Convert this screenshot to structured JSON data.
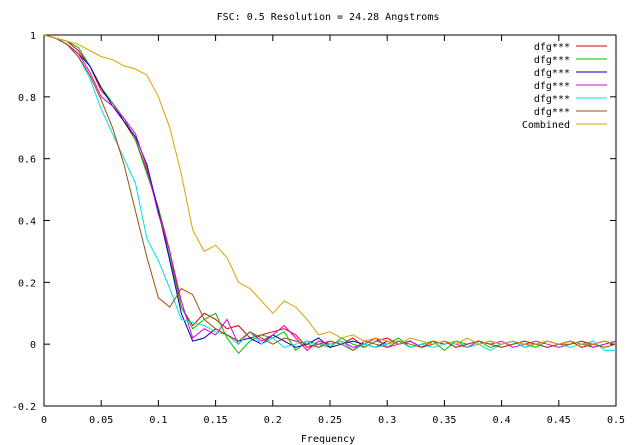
{
  "chart_data": {
    "type": "line",
    "title": "FSC: 0.5 Resolution = 24.28 Angstroms",
    "xlabel": "Frequency",
    "ylabel": "",
    "xlim": [
      0,
      0.5
    ],
    "ylim": [
      -0.2,
      1
    ],
    "xticks": [
      "0",
      "0.05",
      "0.1",
      "0.15",
      "0.2",
      "0.25",
      "0.3",
      "0.35",
      "0.4",
      "0.45",
      "0.5"
    ],
    "yticks": [
      "-0.2",
      "0",
      "0.2",
      "0.4",
      "0.6",
      "0.8",
      "1"
    ],
    "grid": false,
    "legend_position": "top-right",
    "x": [
      0,
      0.01,
      0.02,
      0.03,
      0.04,
      0.05,
      0.06,
      0.07,
      0.08,
      0.09,
      0.1,
      0.11,
      0.12,
      0.13,
      0.14,
      0.15,
      0.16,
      0.17,
      0.18,
      0.19,
      0.2,
      0.21,
      0.22,
      0.23,
      0.24,
      0.25,
      0.26,
      0.27,
      0.28,
      0.29,
      0.3,
      0.31,
      0.32,
      0.33,
      0.34,
      0.35,
      0.36,
      0.37,
      0.38,
      0.39,
      0.4,
      0.41,
      0.42,
      0.43,
      0.44,
      0.45,
      0.46,
      0.47,
      0.48,
      0.49,
      0.5
    ],
    "series": [
      {
        "name": "dfg***",
        "color": "#e00000",
        "values": [
          1,
          0.99,
          0.98,
          0.95,
          0.9,
          0.82,
          0.78,
          0.72,
          0.66,
          0.56,
          0.44,
          0.3,
          0.12,
          0.06,
          0.1,
          0.08,
          0.05,
          0.06,
          0.02,
          0.03,
          0.04,
          0.05,
          0.03,
          -0.01,
          0.0,
          0.01,
          0.0,
          0.02,
          -0.01,
          0.01,
          0.02,
          0.0,
          0.01,
          -0.01,
          0.01,
          0.0,
          0.01,
          -0.01,
          0.0,
          0.01,
          0.0,
          0.01,
          -0.01,
          0.0,
          0.01,
          0.0,
          0.01,
          -0.01,
          0.0,
          0.01,
          0.0
        ]
      },
      {
        "name": "dfg***",
        "color": "#00c000",
        "values": [
          1,
          0.99,
          0.98,
          0.96,
          0.9,
          0.83,
          0.78,
          0.73,
          0.66,
          0.55,
          0.44,
          0.28,
          0.12,
          0.05,
          0.08,
          0.1,
          0.02,
          -0.03,
          0.01,
          0.03,
          0.02,
          0.04,
          -0.02,
          0.01,
          0.0,
          -0.01,
          0.02,
          0.0,
          -0.01,
          0.01,
          0.0,
          0.02,
          -0.01,
          0.0,
          0.01,
          -0.02,
          0.01,
          0.0,
          0.01,
          -0.01,
          0.0,
          0.01,
          0.0,
          -0.01,
          0.01,
          0.0,
          0.01,
          0.0,
          -0.01,
          0.0,
          0.01
        ]
      },
      {
        "name": "dfg***",
        "color": "#0000c0",
        "values": [
          1,
          0.99,
          0.97,
          0.94,
          0.9,
          0.83,
          0.77,
          0.72,
          0.67,
          0.58,
          0.43,
          0.27,
          0.1,
          0.01,
          0.02,
          0.05,
          0.03,
          0.01,
          0.02,
          0.0,
          0.03,
          0.01,
          -0.01,
          0.0,
          0.02,
          -0.01,
          0.0,
          0.01,
          0.0,
          -0.01,
          0.01,
          0.0,
          0.01,
          -0.01,
          0.0,
          0.01,
          -0.01,
          0.0,
          0.01,
          0.0,
          -0.01,
          0.0,
          0.01,
          0.0,
          -0.01,
          0.0,
          0.01,
          0.0,
          0.0,
          0.01,
          0.0
        ]
      },
      {
        "name": "dfg***",
        "color": "#e000e0",
        "values": [
          1,
          0.99,
          0.97,
          0.94,
          0.88,
          0.8,
          0.77,
          0.73,
          0.68,
          0.57,
          0.42,
          0.3,
          0.14,
          0.02,
          0.05,
          0.03,
          0.08,
          0.0,
          0.04,
          0.01,
          0.03,
          0.06,
          0.02,
          -0.02,
          0.01,
          0.0,
          0.01,
          -0.01,
          0.0,
          0.02,
          -0.01,
          0.0,
          0.01,
          -0.01,
          0.0,
          0.01,
          0.0,
          -0.01,
          0.01,
          0.0,
          0.01,
          -0.01,
          0.0,
          0.01,
          0.0,
          -0.01,
          0.0,
          0.01,
          -0.01,
          0.0,
          0.01
        ]
      },
      {
        "name": "dfg***",
        "color": "#00e0e0",
        "values": [
          1,
          0.99,
          0.97,
          0.93,
          0.86,
          0.76,
          0.68,
          0.6,
          0.52,
          0.34,
          0.27,
          0.18,
          0.08,
          0.07,
          0.06,
          0.04,
          0.03,
          0.0,
          0.04,
          0.0,
          0.02,
          -0.01,
          0.0,
          0.01,
          -0.01,
          0.0,
          0.01,
          -0.02,
          0.0,
          -0.01,
          0.0,
          0.01,
          -0.01,
          0.0,
          -0.01,
          0.0,
          0.01,
          -0.01,
          0.0,
          -0.02,
          0.0,
          0.01,
          -0.01,
          0.0,
          0.01,
          0.0,
          -0.01,
          0.0,
          0.01,
          -0.02,
          -0.02
        ]
      },
      {
        "name": "dfg***",
        "color": "#a05000",
        "values": [
          1,
          0.99,
          0.97,
          0.93,
          0.87,
          0.79,
          0.7,
          0.58,
          0.43,
          0.28,
          0.15,
          0.12,
          0.18,
          0.16,
          0.08,
          0.05,
          0.03,
          0.01,
          0.04,
          0.02,
          0.0,
          0.02,
          0.01,
          0.0,
          -0.01,
          0.01,
          0.0,
          -0.02,
          0.01,
          0.0,
          -0.01,
          0.01,
          0.0,
          -0.01,
          0.0,
          0.01,
          -0.01,
          0.0,
          0.01,
          0.0,
          -0.01,
          0.0,
          0.01,
          0.0,
          -0.01,
          0.0,
          0.0,
          0.01,
          0.0,
          -0.01,
          0.0
        ]
      },
      {
        "name": "Combined",
        "color": "#e0a000",
        "values": [
          1,
          0.99,
          0.98,
          0.97,
          0.95,
          0.93,
          0.92,
          0.9,
          0.89,
          0.87,
          0.8,
          0.7,
          0.55,
          0.37,
          0.3,
          0.32,
          0.28,
          0.2,
          0.18,
          0.14,
          0.1,
          0.14,
          0.12,
          0.08,
          0.03,
          0.04,
          0.02,
          0.03,
          0.01,
          0.02,
          0.01,
          0.0,
          0.02,
          0.01,
          0.0,
          0.01,
          0.0,
          0.02,
          0.0,
          0.01,
          0.0,
          0.01,
          0.0,
          0.0,
          0.01,
          0.0,
          0.01,
          0.0,
          0.0,
          0.01,
          0.0
        ]
      }
    ]
  }
}
